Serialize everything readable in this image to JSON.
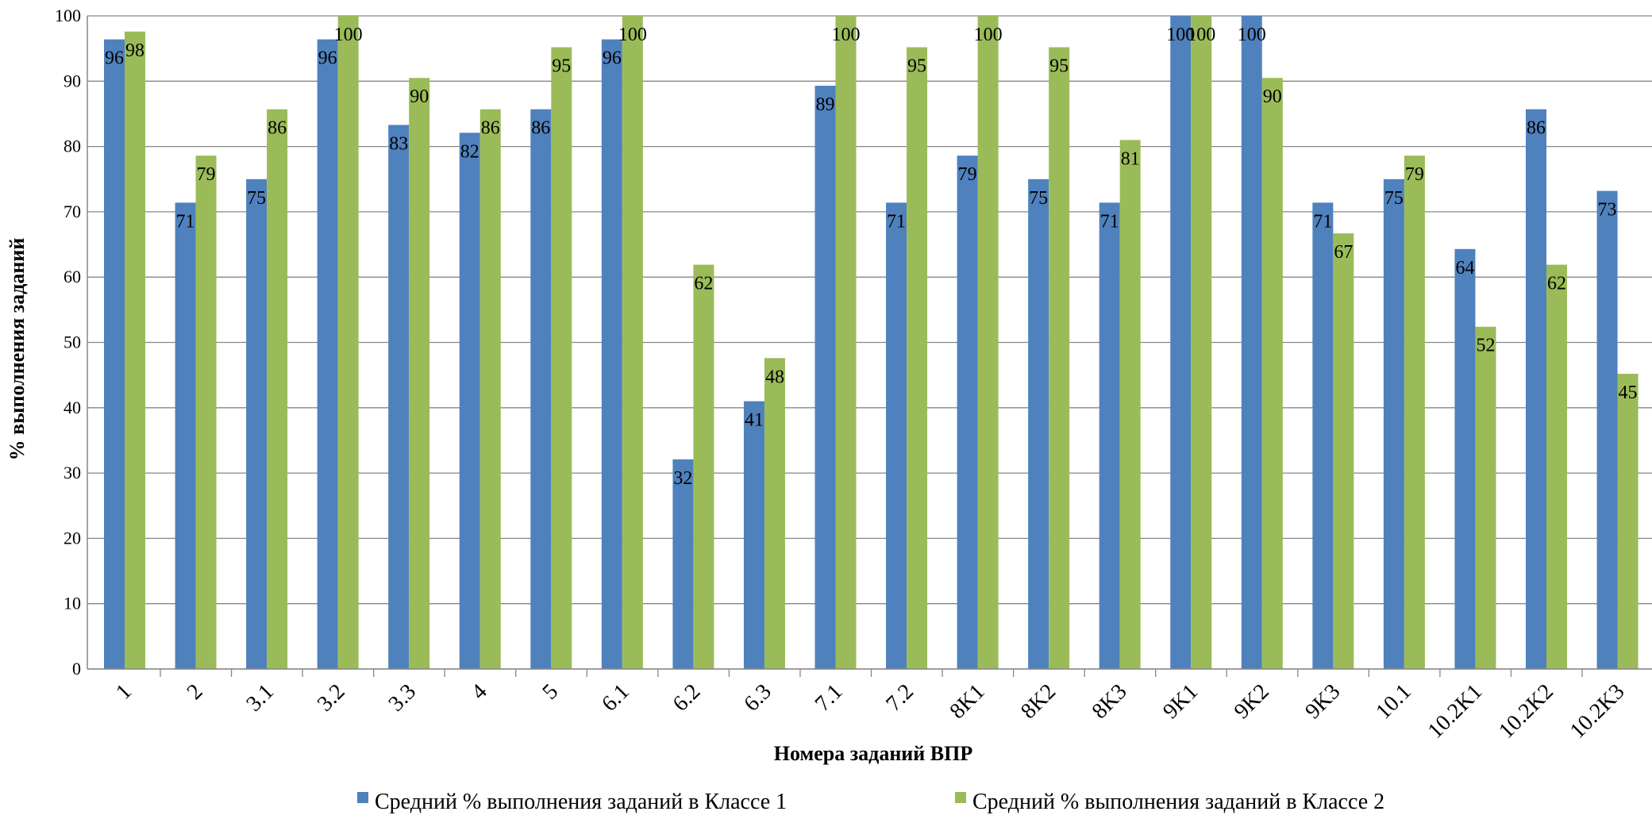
{
  "chart_data": {
    "type": "bar",
    "title": "",
    "xlabel": "Номера заданий ВПР",
    "ylabel": "% выполнения заданий",
    "ylim": [
      0,
      100
    ],
    "yticks": [
      0,
      10,
      20,
      30,
      40,
      50,
      60,
      70,
      80,
      90,
      100
    ],
    "grid": true,
    "legend_position": "bottom",
    "categories": [
      "1",
      "2",
      "3.1",
      "3.2",
      "3.3",
      "4",
      "5",
      "6.1",
      "6.2",
      "6.3",
      "7.1",
      "7.2",
      "8K1",
      "8K2",
      "8K3",
      "9K1",
      "9K2",
      "9K3",
      "10.1",
      "10.2K1",
      "10.2K2",
      "10.2K3"
    ],
    "series": [
      {
        "name": "Средний % выполнения заданий в Классе 1",
        "color": "#4F81BD",
        "values": [
          96.4,
          71.4,
          75,
          96.4,
          83.3,
          82.1,
          85.7,
          96.4,
          32.1,
          41,
          89.3,
          71.4,
          78.6,
          75,
          71.4,
          100,
          100,
          71.4,
          75,
          64.3,
          85.7,
          73.2
        ],
        "labels": [
          "96",
          "71",
          "75",
          "96",
          "83",
          "82",
          "86",
          "96",
          "32",
          "41",
          "89",
          "71",
          "79",
          "75",
          "71",
          "100",
          "100",
          "71",
          "75",
          "64",
          "86",
          "73"
        ]
      },
      {
        "name": "Средний % выполнения заданий в Классе 2",
        "color": "#9BBB59",
        "values": [
          97.6,
          78.6,
          85.7,
          100,
          90.5,
          85.7,
          95.2,
          100,
          61.9,
          47.6,
          100,
          95.2,
          100,
          95.2,
          81,
          100,
          90.5,
          66.7,
          78.6,
          52.4,
          61.9,
          45.2
        ],
        "labels": [
          "98",
          "79",
          "86",
          "100",
          "90",
          "86",
          "95",
          "100",
          "62",
          "48",
          "100",
          "95",
          "100",
          "95",
          "81",
          "100",
          "90",
          "67",
          "79",
          "52",
          "62",
          "45"
        ]
      }
    ]
  }
}
